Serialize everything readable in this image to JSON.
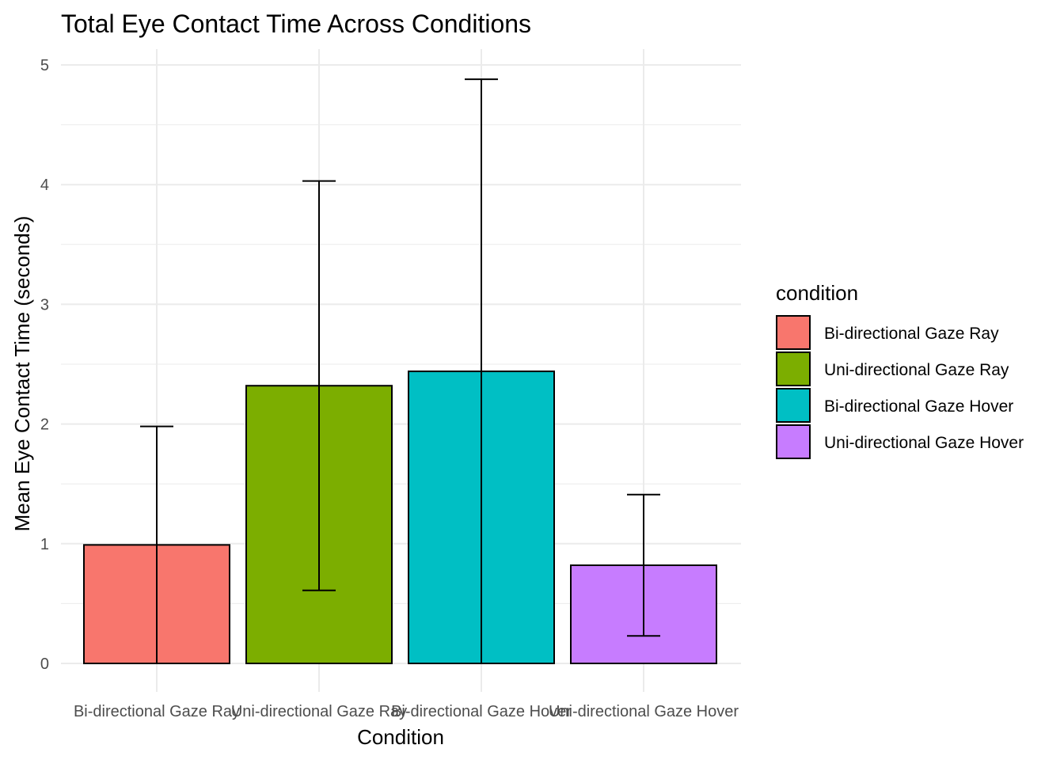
{
  "chart_data": {
    "type": "bar",
    "title": "Total Eye Contact Time Across Conditions",
    "xlabel": "Condition",
    "ylabel": "Mean Eye Contact Time (seconds)",
    "categories": [
      "Bi-directional Gaze Ray",
      "Uni-directional Gaze Ray",
      "Bi-directional Gaze Hover",
      "Uni-directional Gaze Hover"
    ],
    "values": [
      0.99,
      2.32,
      2.44,
      0.82
    ],
    "error_low": [
      0.0,
      0.61,
      0.0,
      0.23
    ],
    "error_high": [
      1.98,
      4.03,
      4.88,
      1.41
    ],
    "colors": [
      "#F8766D",
      "#7CAE00",
      "#00BFC4",
      "#C77CFF"
    ],
    "ylim": [
      0,
      5
    ],
    "y_ticks": [
      "0",
      "1",
      "2",
      "3",
      "4",
      "5"
    ],
    "grid": true,
    "legend": {
      "title": "condition",
      "placement": "right",
      "entries": [
        "Bi-directional Gaze Ray",
        "Uni-directional Gaze Ray",
        "Bi-directional Gaze Hover",
        "Uni-directional Gaze Hover"
      ]
    }
  }
}
